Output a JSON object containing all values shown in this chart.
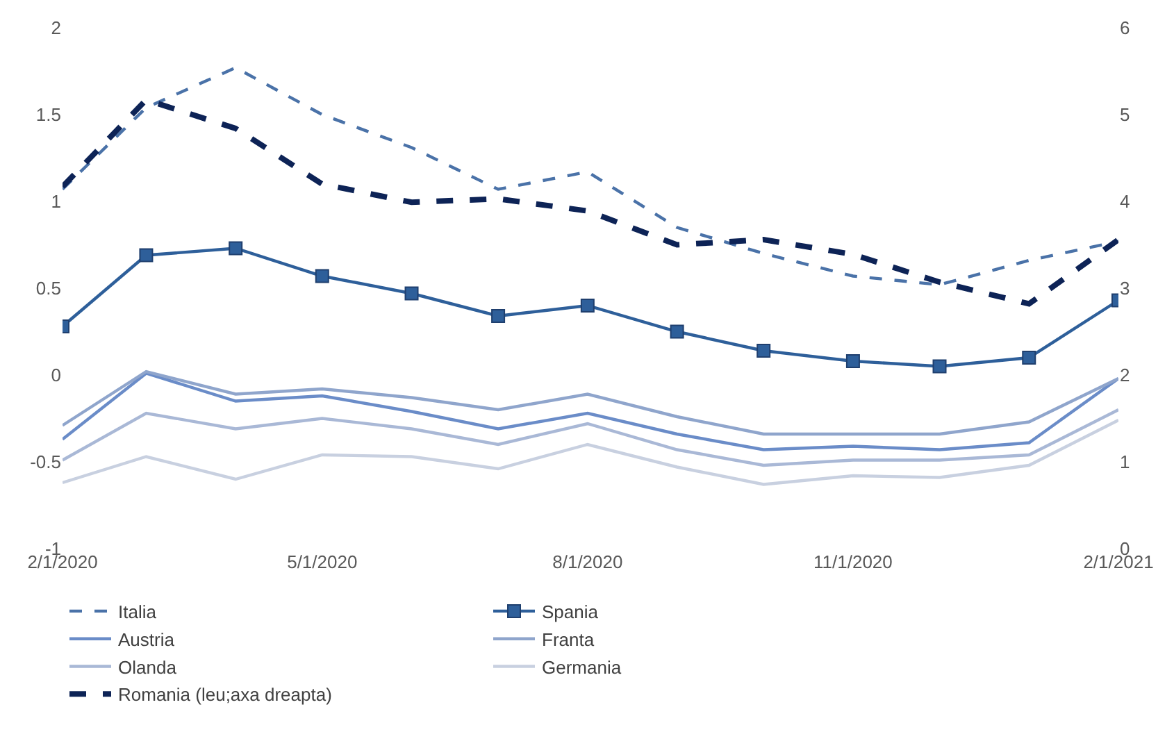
{
  "chart_data": {
    "type": "line",
    "x": [
      "2020-02-01",
      "2020-03-01",
      "2020-04-01",
      "2020-05-01",
      "2020-06-01",
      "2020-07-01",
      "2020-08-01",
      "2020-09-01",
      "2020-10-01",
      "2020-11-01",
      "2020-12-01",
      "2021-01-01",
      "2021-02-01"
    ],
    "series": [
      {
        "name": "Italia",
        "color": "#4a72a8",
        "line_style": "dashed",
        "marker": "none",
        "values": [
          1.07,
          1.54,
          1.77,
          1.5,
          1.31,
          1.07,
          1.17,
          0.85,
          0.7,
          0.57,
          0.52,
          0.66,
          0.77
        ]
      },
      {
        "name": "Spania",
        "color": "#2e5f9a",
        "line_style": "solid",
        "marker": "square",
        "values": [
          0.28,
          0.69,
          0.73,
          0.57,
          0.47,
          0.34,
          0.4,
          0.25,
          0.14,
          0.08,
          0.05,
          0.1,
          0.43
        ]
      },
      {
        "name": "Austria",
        "color": "#6a8cc8",
        "line_style": "solid",
        "marker": "none",
        "values": [
          -0.37,
          0.01,
          -0.15,
          -0.12,
          -0.21,
          -0.31,
          -0.22,
          -0.34,
          -0.43,
          -0.41,
          -0.43,
          -0.39,
          -0.02
        ]
      },
      {
        "name": "Franta",
        "color": "#8fa5cc",
        "line_style": "solid",
        "marker": "none",
        "values": [
          -0.29,
          0.02,
          -0.11,
          -0.08,
          -0.13,
          -0.2,
          -0.11,
          -0.24,
          -0.34,
          -0.34,
          -0.34,
          -0.27,
          -0.02
        ]
      },
      {
        "name": "Olanda",
        "color": "#a9b8d6",
        "line_style": "solid",
        "marker": "none",
        "values": [
          -0.49,
          -0.22,
          -0.31,
          -0.25,
          -0.31,
          -0.4,
          -0.28,
          -0.43,
          -0.52,
          -0.49,
          -0.49,
          -0.46,
          -0.2
        ]
      },
      {
        "name": "Germania",
        "color": "#c8d0e0",
        "line_style": "solid",
        "marker": "none",
        "values": [
          -0.62,
          -0.47,
          -0.6,
          -0.46,
          -0.47,
          -0.54,
          -0.4,
          -0.53,
          -0.63,
          -0.58,
          -0.59,
          -0.52,
          -0.26
        ]
      },
      {
        "name": "Romania (leu;axa dreapta)",
        "color": "#0d2356",
        "line_style": "dashed",
        "marker": "none",
        "axis": "y2",
        "values": [
          4.17,
          5.17,
          4.84,
          4.2,
          3.99,
          4.03,
          3.89,
          3.5,
          3.56,
          3.39,
          3.07,
          2.82,
          3.56
        ]
      }
    ],
    "xlim": [
      "2020-02-01",
      "2021-02-01"
    ],
    "xticks": [
      {
        "value": "2020-02-01",
        "label": "2/1/2020"
      },
      {
        "value": "2020-05-01",
        "label": "5/1/2020"
      },
      {
        "value": "2020-08-01",
        "label": "8/1/2020"
      },
      {
        "value": "2020-11-01",
        "label": "11/1/2020"
      },
      {
        "value": "2021-02-01",
        "label": "2/1/2021"
      }
    ],
    "ylim": [
      -1,
      2
    ],
    "yticks": [
      -1,
      -0.5,
      0,
      0.5,
      1,
      1.5,
      2
    ],
    "y2lim": [
      0,
      6
    ],
    "y2ticks": [
      0,
      1,
      2,
      3,
      4,
      5,
      6
    ],
    "grid": false,
    "legend": "bottom"
  }
}
